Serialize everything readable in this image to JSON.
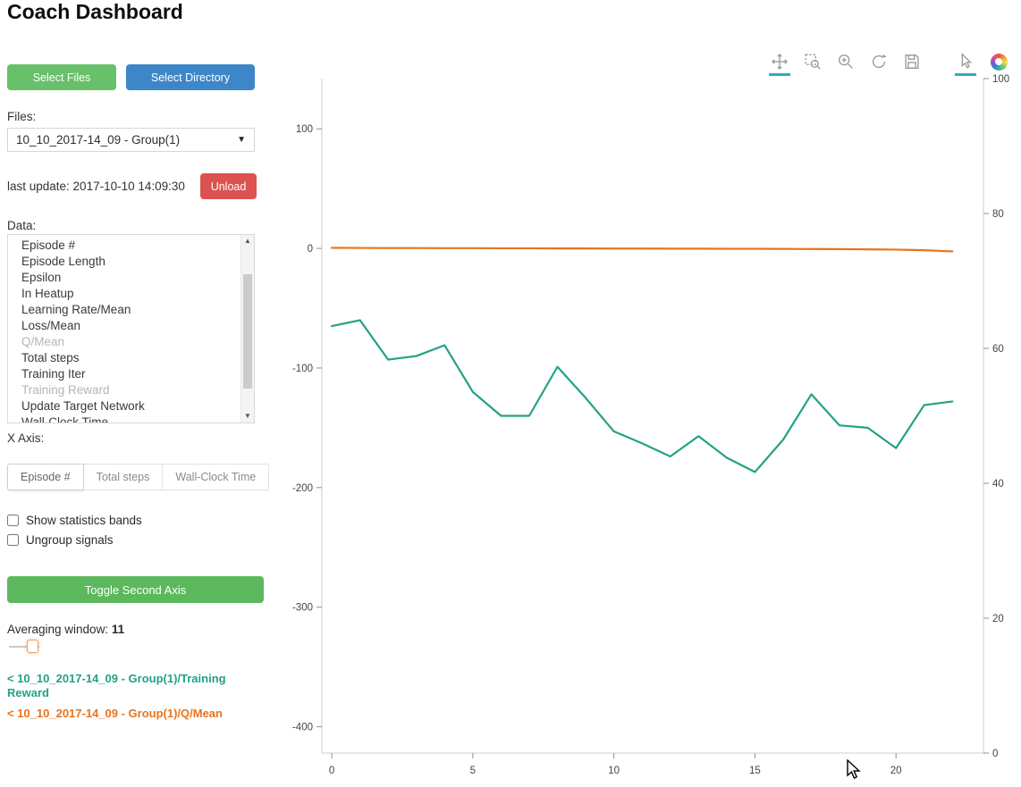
{
  "app": {
    "title": "Coach Dashboard"
  },
  "icons": {
    "caret_down": "▼",
    "scroll_up": "▲",
    "scroll_down": "▼"
  },
  "colors": {
    "btn_green": "#68c06a",
    "btn_blue": "#3d87c9",
    "btn_red": "#dc5250",
    "btn_green_dark": "#5cb85c",
    "active_tool_underline": "#2aaec6",
    "series_teal": "#24a186",
    "series_orange": "#e8731c"
  },
  "sidebar": {
    "select_files_label": "Select Files",
    "select_directory_label": "Select Directory",
    "files_label": "Files:",
    "files_selected": "10_10_2017-14_09 - Group(1)",
    "last_update": "last update: 2017-10-10 14:09:30",
    "unload_label": "Unload",
    "data_label": "Data:",
    "data_items": [
      {
        "label": "Episode #",
        "dimmed": false
      },
      {
        "label": "Episode Length",
        "dimmed": false
      },
      {
        "label": "Epsilon",
        "dimmed": false
      },
      {
        "label": "In Heatup",
        "dimmed": false
      },
      {
        "label": "Learning Rate/Mean",
        "dimmed": false
      },
      {
        "label": "Loss/Mean",
        "dimmed": false
      },
      {
        "label": "Q/Mean",
        "dimmed": true
      },
      {
        "label": "Total steps",
        "dimmed": false
      },
      {
        "label": "Training Iter",
        "dimmed": false
      },
      {
        "label": "Training Reward",
        "dimmed": true
      },
      {
        "label": "Update Target Network",
        "dimmed": false
      },
      {
        "label": "Wall-Clock Time",
        "dimmed": false
      }
    ],
    "x_axis_label": "X Axis:",
    "x_axis_options": [
      "Episode #",
      "Total steps",
      "Wall-Clock Time"
    ],
    "x_axis_selected": "Episode #",
    "checkbox_stats": "Show statistics bands",
    "checkbox_ungroup": "Ungroup signals",
    "toggle_second_axis_label": "Toggle Second Axis",
    "averaging_label": "Averaging window:",
    "averaging_value": "11",
    "legend": [
      {
        "label": "< 10_10_2017-14_09 - Group(1)/Training Reward",
        "color": "#24a186"
      },
      {
        "label": "< 10_10_2017-14_09 - Group(1)/Q/Mean",
        "color": "#e8731c"
      }
    ]
  },
  "toolbar": {
    "tools": [
      "pan",
      "box-zoom",
      "wheel-zoom",
      "reset",
      "save",
      "hover",
      "bokeh-logo"
    ],
    "active_tools": [
      "pan",
      "hover"
    ]
  },
  "chart_data": {
    "type": "line",
    "title": "",
    "xlabel": "",
    "ylabel": "",
    "grid": false,
    "legend_position": "sidebar-bottom",
    "x": [
      0,
      1,
      2,
      3,
      4,
      5,
      6,
      7,
      8,
      9,
      10,
      11,
      12,
      13,
      14,
      15,
      16,
      17,
      18,
      19,
      20,
      21,
      22
    ],
    "series": [
      {
        "name": "10_10_2017-14_09 - Group(1)/Training Reward",
        "color": "#24a186",
        "axis": "left",
        "values": [
          -65,
          -60,
          -93,
          -90,
          -81,
          -120,
          -140,
          -140,
          -99,
          -125,
          -153,
          -163,
          -174,
          -157,
          -175,
          -187,
          -160,
          -122,
          -148,
          -150,
          -167,
          -131,
          -128
        ]
      },
      {
        "name": "10_10_2017-14_09 - Group(1)/Q/Mean",
        "color": "#e8731c",
        "axis": "left",
        "values": [
          0.5,
          0.4,
          0.3,
          0.3,
          0.2,
          0.2,
          0.1,
          0.1,
          0.0,
          0.0,
          -0.1,
          -0.1,
          -0.2,
          -0.2,
          -0.3,
          -0.3,
          -0.4,
          -0.5,
          -0.6,
          -0.8,
          -1.0,
          -1.5,
          -2.5
        ]
      }
    ],
    "x_axis": {
      "ticks": [
        0,
        5,
        10,
        15,
        20
      ],
      "range": [
        -0.35,
        23.1
      ]
    },
    "left_axis": {
      "ticks": [
        100,
        0,
        -100,
        -200,
        -300,
        -400
      ],
      "range": [
        -422,
        142
      ]
    },
    "right_axis": {
      "ticks": [
        0,
        20,
        40,
        60,
        80,
        100
      ],
      "range": [
        0,
        100
      ]
    }
  }
}
